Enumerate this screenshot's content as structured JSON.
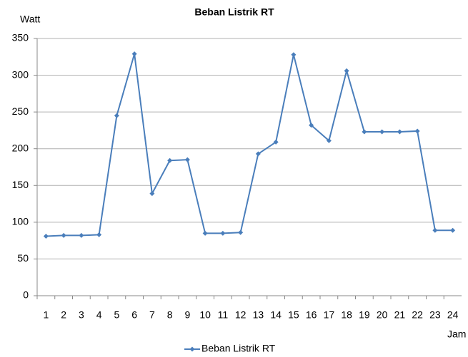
{
  "chart_data": {
    "type": "line",
    "title": "Beban Listrik RT",
    "y_label": "Watt",
    "x_label": "Jam",
    "categories": [
      "1",
      "2",
      "3",
      "4",
      "5",
      "6",
      "7",
      "8",
      "9",
      "10",
      "11",
      "12",
      "13",
      "14",
      "15",
      "16",
      "17",
      "18",
      "19",
      "20",
      "21",
      "22",
      "23",
      "24"
    ],
    "series": [
      {
        "name": "Beban Listrik RT",
        "color": "#4a7ebb",
        "values": [
          81,
          82,
          82,
          83,
          245,
          329,
          139,
          184,
          185,
          85,
          85,
          86,
          193,
          209,
          328,
          232,
          211,
          306,
          223,
          223,
          223,
          224,
          89,
          89
        ]
      }
    ],
    "ylim": [
      0,
      350
    ],
    "yticks": [
      0,
      50,
      100,
      150,
      200,
      250,
      300,
      350
    ],
    "grid": true,
    "legend": "bottom"
  }
}
